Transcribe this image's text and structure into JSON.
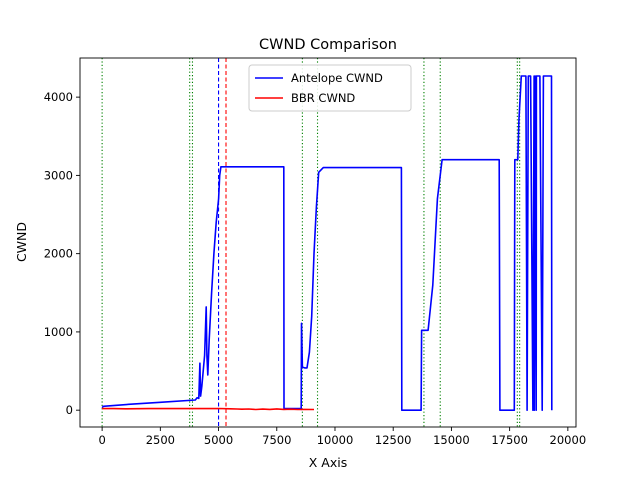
{
  "chart_data": {
    "type": "line",
    "title": "CWND Comparison",
    "xlabel": "X Axis",
    "ylabel": "CWND",
    "xlim": [
      -950,
      20350
    ],
    "ylim": [
      -215,
      4500
    ],
    "xticks": [
      0,
      2500,
      5000,
      7500,
      10000,
      12500,
      15000,
      17500,
      20000
    ],
    "yticks": [
      0,
      1000,
      2000,
      3000,
      4000
    ],
    "grid": false,
    "legend": "upper-center",
    "colors": {
      "antelope": "#0000ff",
      "bbr": "#ff0000",
      "marker": "#008000"
    },
    "series": [
      {
        "name": "Antelope CWND",
        "color": "#0000ff",
        "x": [
          0,
          50,
          1400,
          2500,
          4000,
          4080,
          4150,
          4200,
          4230,
          4280,
          4400,
          4470,
          4500,
          4540,
          4600,
          4650,
          4700,
          4800,
          4900,
          5000,
          5050,
          5100,
          5150,
          5300,
          7000,
          7800,
          7810,
          7900,
          8500,
          8550,
          8560,
          8600,
          8700,
          8800,
          8900,
          9000,
          9100,
          9200,
          9300,
          9500,
          9700,
          12000,
          12850,
          12870,
          13700,
          13720,
          13800,
          14000,
          14200,
          14400,
          14600,
          15000,
          15800,
          16000,
          17050,
          17080,
          17700,
          17720,
          17850,
          17900,
          18000,
          18100,
          18200,
          18250,
          18300,
          18400,
          18500,
          18550,
          18560,
          18600,
          18640,
          18650,
          18700,
          18800,
          18900,
          18950,
          19000,
          19050,
          19100,
          19200,
          19300,
          19310
        ],
        "y": [
          30,
          50,
          80,
          100,
          130,
          160,
          150,
          600,
          180,
          300,
          700,
          1320,
          700,
          450,
          900,
          1200,
          1500,
          2000,
          2400,
          2700,
          3000,
          3110,
          3110,
          3110,
          3110,
          3110,
          20,
          20,
          20,
          10,
          1110,
          550,
          540,
          540,
          740,
          1200,
          2000,
          2600,
          3040,
          3100,
          3100,
          3100,
          3100,
          0,
          0,
          1020,
          1020,
          1020,
          1600,
          2700,
          3200,
          3200,
          3200,
          3200,
          3200,
          0,
          0,
          3200,
          3200,
          3700,
          4270,
          4270,
          4270,
          0,
          4270,
          4270,
          0,
          4270,
          0,
          4270,
          0,
          4270,
          4270,
          4270,
          0,
          4270,
          4270,
          4270,
          4270,
          4270,
          4270,
          0
        ]
      },
      {
        "name": "BBR CWND",
        "color": "#ff0000",
        "x": [
          0,
          500,
          1000,
          2000,
          3000,
          4000,
          5000,
          5500,
          5800,
          6000,
          6300,
          6600,
          6900,
          7200,
          7500,
          7800,
          8100,
          8400,
          8700,
          9100
        ],
        "y": [
          20,
          20,
          18,
          20,
          20,
          20,
          22,
          18,
          15,
          12,
          15,
          8,
          14,
          10,
          16,
          10,
          12,
          8,
          10,
          8
        ]
      }
    ],
    "vlines": [
      {
        "x": 0,
        "style": "dotted",
        "color": "#008000"
      },
      {
        "x": 3760,
        "style": "dotted",
        "color": "#008000"
      },
      {
        "x": 3880,
        "style": "dotted",
        "color": "#008000"
      },
      {
        "x": 5000,
        "style": "dashed",
        "color": "#0000ff"
      },
      {
        "x": 5320,
        "style": "dashed",
        "color": "#ff0000"
      },
      {
        "x": 8600,
        "style": "dotted",
        "color": "#008000"
      },
      {
        "x": 9250,
        "style": "dotted",
        "color": "#008000"
      },
      {
        "x": 13820,
        "style": "dotted",
        "color": "#008000"
      },
      {
        "x": 14520,
        "style": "dotted",
        "color": "#008000"
      },
      {
        "x": 17830,
        "style": "dotted",
        "color": "#008000"
      },
      {
        "x": 17930,
        "style": "dotted",
        "color": "#008000"
      }
    ]
  }
}
